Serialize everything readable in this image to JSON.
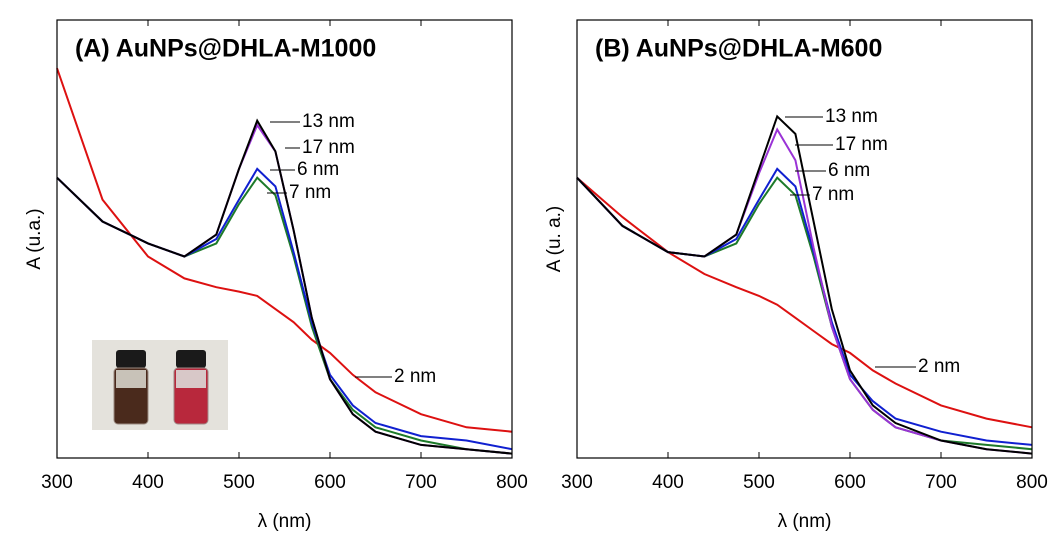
{
  "chart_data": [
    {
      "type": "line",
      "title": "(A) AuNPs@DHLA-M1000",
      "x_label": "λ (nm)",
      "y_label": "A (u.a.)",
      "x": [
        300,
        350,
        400,
        440,
        475,
        500,
        520,
        540,
        560,
        580,
        600,
        625,
        650,
        700,
        750,
        800
      ],
      "xlim": [
        300,
        800
      ],
      "xticks": [
        300,
        400,
        500,
        600,
        700,
        800
      ],
      "ylim": [
        0,
        1
      ],
      "series": [
        {
          "name": "13 nm",
          "color": "#000000",
          "values": [
            0.64,
            0.54,
            0.49,
            0.46,
            0.51,
            0.66,
            0.77,
            0.7,
            0.52,
            0.32,
            0.18,
            0.1,
            0.06,
            0.03,
            0.02,
            0.01
          ]
        },
        {
          "name": "17 nm",
          "color": "#9a33d6",
          "values": [
            0.64,
            0.54,
            0.49,
            0.46,
            0.51,
            0.66,
            0.76,
            0.7,
            0.52,
            0.32,
            0.18,
            0.1,
            0.06,
            0.03,
            0.02,
            0.01
          ]
        },
        {
          "name": "6 nm",
          "color": "#1020d0",
          "values": [
            0.64,
            0.54,
            0.49,
            0.46,
            0.5,
            0.59,
            0.66,
            0.62,
            0.47,
            0.31,
            0.19,
            0.12,
            0.08,
            0.05,
            0.04,
            0.02
          ]
        },
        {
          "name": "7 nm",
          "color": "#1d7a2a",
          "values": [
            0.64,
            0.54,
            0.49,
            0.46,
            0.49,
            0.58,
            0.64,
            0.6,
            0.46,
            0.3,
            0.18,
            0.11,
            0.07,
            0.04,
            0.02,
            0.01
          ]
        },
        {
          "name": "2 nm",
          "color": "#dd1111",
          "values": [
            0.89,
            0.59,
            0.46,
            0.41,
            0.39,
            0.38,
            0.37,
            0.34,
            0.31,
            0.27,
            0.24,
            0.19,
            0.15,
            0.1,
            0.07,
            0.06
          ]
        }
      ]
    },
    {
      "type": "line",
      "title": "(B) AuNPs@DHLA-M600",
      "x_label": "λ (nm)",
      "y_label": "A (u. a.)",
      "x": [
        300,
        350,
        400,
        440,
        475,
        500,
        520,
        540,
        560,
        580,
        600,
        625,
        650,
        700,
        750,
        800
      ],
      "xlim": [
        300,
        800
      ],
      "xticks": [
        300,
        400,
        500,
        600,
        700,
        800
      ],
      "ylim": [
        0,
        1
      ],
      "series": [
        {
          "name": "13 nm",
          "color": "#000000",
          "values": [
            0.64,
            0.53,
            0.47,
            0.46,
            0.51,
            0.66,
            0.78,
            0.74,
            0.54,
            0.34,
            0.2,
            0.12,
            0.08,
            0.04,
            0.02,
            0.01
          ]
        },
        {
          "name": "17 nm",
          "color": "#9a33d6",
          "values": [
            0.64,
            0.53,
            0.47,
            0.46,
            0.51,
            0.65,
            0.75,
            0.68,
            0.48,
            0.3,
            0.18,
            0.11,
            0.07,
            0.04,
            0.02,
            0.01
          ]
        },
        {
          "name": "6 nm",
          "color": "#1020d0",
          "values": [
            0.64,
            0.53,
            0.47,
            0.46,
            0.5,
            0.59,
            0.66,
            0.62,
            0.47,
            0.31,
            0.19,
            0.13,
            0.09,
            0.06,
            0.04,
            0.03
          ]
        },
        {
          "name": "7 nm",
          "color": "#1d7a2a",
          "values": [
            0.64,
            0.53,
            0.47,
            0.46,
            0.49,
            0.58,
            0.64,
            0.6,
            0.46,
            0.3,
            0.18,
            0.11,
            0.07,
            0.04,
            0.03,
            0.02
          ]
        },
        {
          "name": "2 nm",
          "color": "#dd1111",
          "values": [
            0.64,
            0.55,
            0.47,
            0.42,
            0.39,
            0.37,
            0.35,
            0.32,
            0.29,
            0.26,
            0.24,
            0.2,
            0.17,
            0.12,
            0.09,
            0.07
          ]
        }
      ]
    }
  ]
}
